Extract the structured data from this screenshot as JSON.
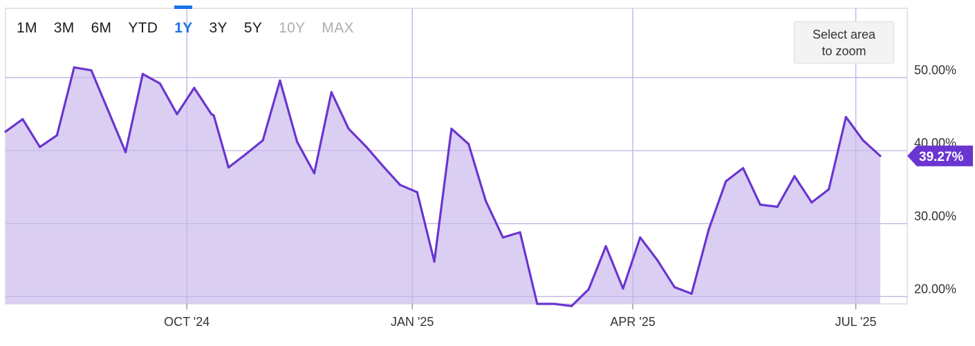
{
  "range_tabs": [
    {
      "label": "1M",
      "state": "normal"
    },
    {
      "label": "3M",
      "state": "normal"
    },
    {
      "label": "6M",
      "state": "normal"
    },
    {
      "label": "YTD",
      "state": "normal"
    },
    {
      "label": "1Y",
      "state": "active"
    },
    {
      "label": "3Y",
      "state": "normal"
    },
    {
      "label": "5Y",
      "state": "normal"
    },
    {
      "label": "10Y",
      "state": "disabled"
    },
    {
      "label": "MAX",
      "state": "disabled"
    }
  ],
  "zoom_hint": {
    "line1": "Select area",
    "line2": "to zoom"
  },
  "colors": {
    "line": "#6a35d0",
    "fill": "#d8ccf2",
    "grid": "#dcdcdc",
    "active_tab": "#1a73e8"
  },
  "chart_data": {
    "type": "area",
    "title": "",
    "xlabel": "",
    "ylabel": "",
    "xlim": [
      "2024-07-19",
      "2025-07-22"
    ],
    "ylim": [
      19.0,
      59.5
    ],
    "y_ticks": [
      20,
      30,
      40,
      50
    ],
    "y_tick_labels": [
      "20.00%",
      "30.00%",
      "40.00%",
      "50.00%"
    ],
    "x_ticks": [
      {
        "date": "2024-10-01",
        "label": "OCT '24"
      },
      {
        "date": "2025-01-01",
        "label": "JAN '25"
      },
      {
        "date": "2025-04-01",
        "label": "APR '25"
      },
      {
        "date": "2025-07-01",
        "label": "JUL '25"
      }
    ],
    "grid": true,
    "last_value_label": "39.27%",
    "series": [
      {
        "points": [
          [
            "2024-07-19",
            42.6
          ],
          [
            "2024-07-26",
            44.3
          ],
          [
            "2024-08-02",
            40.5
          ],
          [
            "2024-08-09",
            42.1
          ],
          [
            "2024-08-16",
            51.4
          ],
          [
            "2024-08-23",
            51.0
          ],
          [
            "2024-08-30",
            45.4
          ],
          [
            "2024-09-06",
            39.8
          ],
          [
            "2024-09-13",
            50.5
          ],
          [
            "2024-09-20",
            49.2
          ],
          [
            "2024-09-27",
            45.0
          ],
          [
            "2024-10-04",
            48.6
          ],
          [
            "2024-10-11",
            45.0
          ],
          [
            "2024-10-12",
            44.8
          ],
          [
            "2024-10-18",
            37.7
          ],
          [
            "2024-10-25",
            39.5
          ],
          [
            "2024-11-01",
            41.4
          ],
          [
            "2024-11-08",
            49.6
          ],
          [
            "2024-11-15",
            41.2
          ],
          [
            "2024-11-22",
            36.9
          ],
          [
            "2024-11-29",
            48.0
          ],
          [
            "2024-12-06",
            43.0
          ],
          [
            "2024-12-13",
            40.6
          ],
          [
            "2024-12-20",
            37.9
          ],
          [
            "2024-12-27",
            35.3
          ],
          [
            "2025-01-03",
            34.3
          ],
          [
            "2025-01-10",
            24.8
          ],
          [
            "2025-01-17",
            43.0
          ],
          [
            "2025-01-24",
            40.9
          ],
          [
            "2025-01-31",
            33.1
          ],
          [
            "2025-02-07",
            28.1
          ],
          [
            "2025-02-14",
            28.8
          ],
          [
            "2025-02-21",
            19.0
          ],
          [
            "2025-02-28",
            19.0
          ],
          [
            "2025-03-07",
            18.7
          ],
          [
            "2025-03-14",
            21.0
          ],
          [
            "2025-03-21",
            26.9
          ],
          [
            "2025-03-28",
            21.1
          ],
          [
            "2025-04-04",
            28.1
          ],
          [
            "2025-04-11",
            25.0
          ],
          [
            "2025-04-18",
            21.3
          ],
          [
            "2025-04-25",
            20.4
          ],
          [
            "2025-05-02",
            29.2
          ],
          [
            "2025-05-09",
            35.8
          ],
          [
            "2025-05-16",
            37.6
          ],
          [
            "2025-05-23",
            32.6
          ],
          [
            "2025-05-30",
            32.3
          ],
          [
            "2025-06-06",
            36.5
          ],
          [
            "2025-06-13",
            32.9
          ],
          [
            "2025-06-20",
            34.7
          ],
          [
            "2025-06-27",
            44.6
          ],
          [
            "2025-07-04",
            41.4
          ],
          [
            "2025-07-11",
            39.27
          ]
        ]
      }
    ]
  }
}
